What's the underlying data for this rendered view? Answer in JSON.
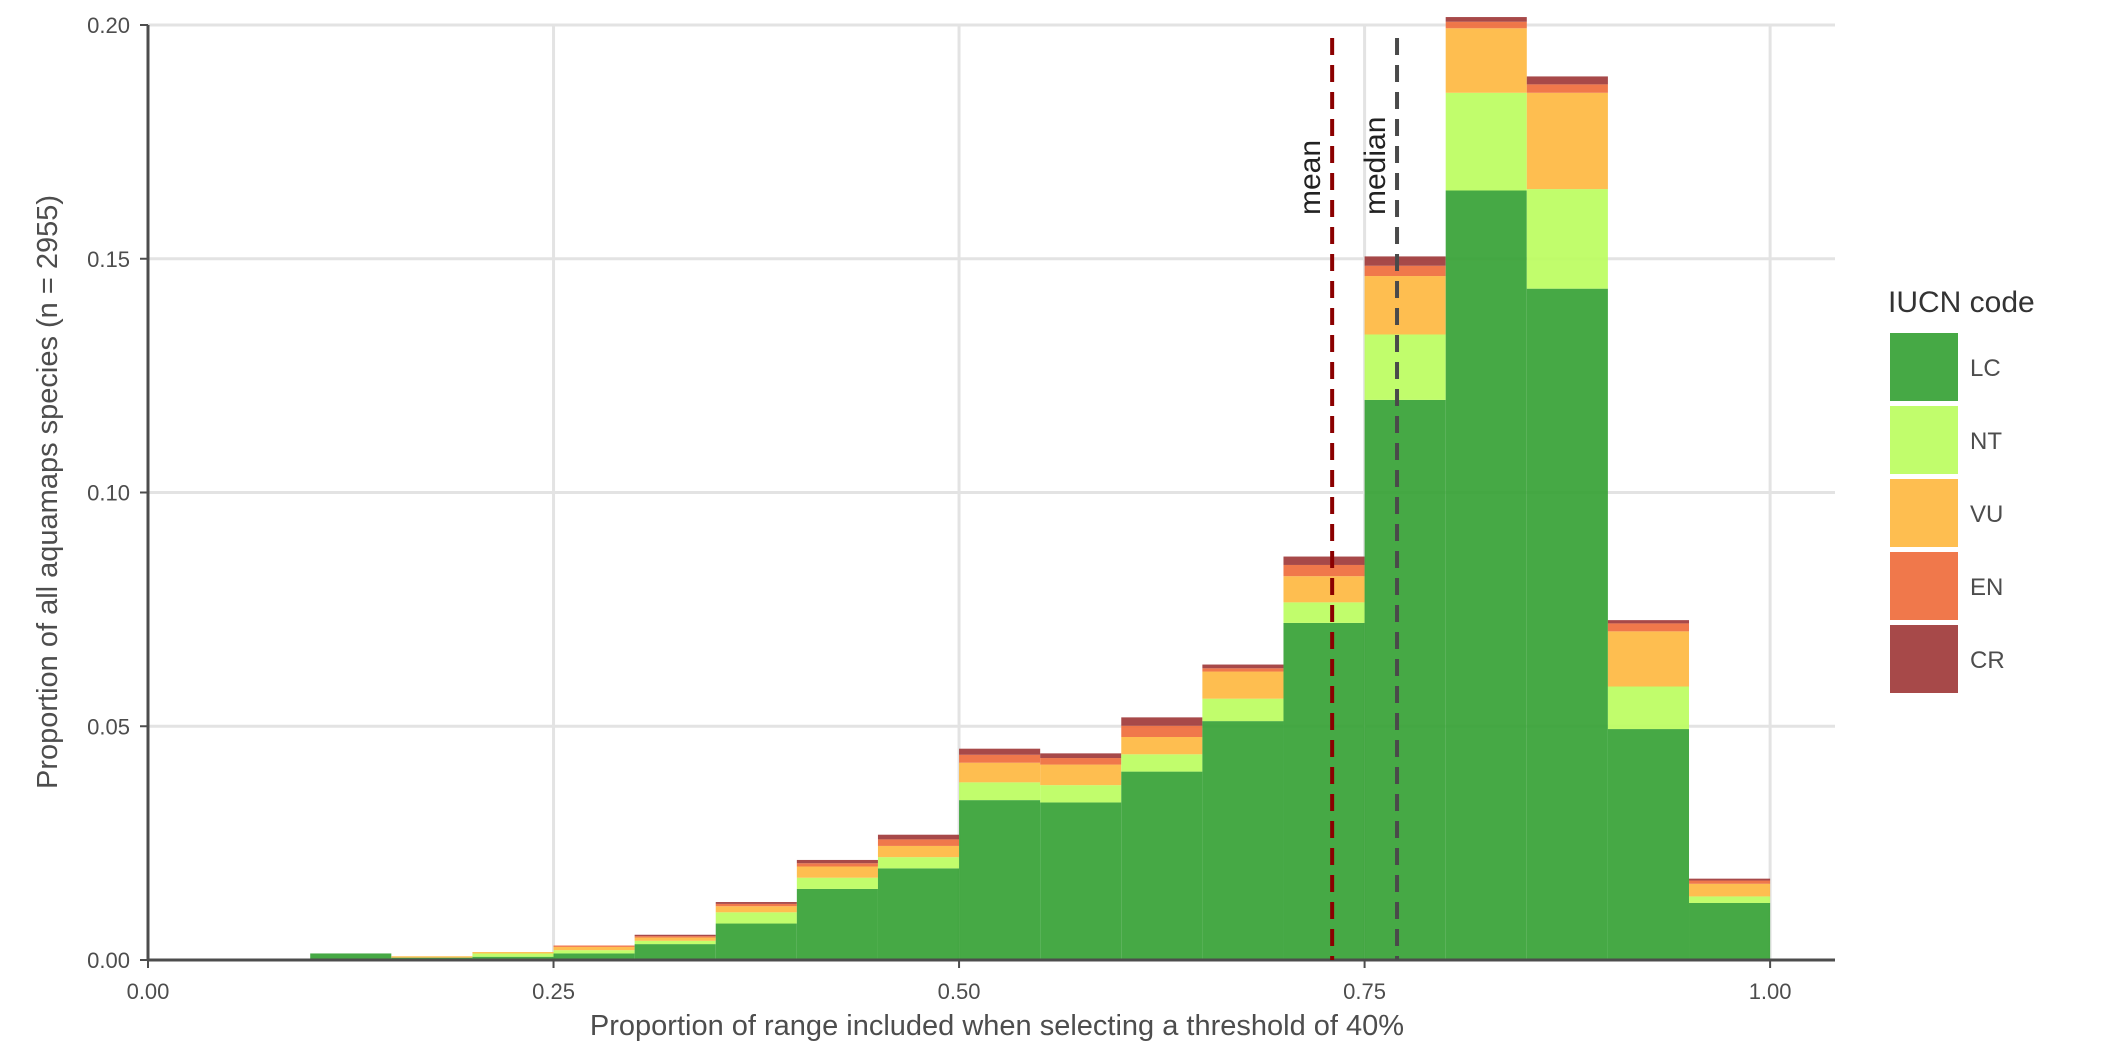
{
  "chart_data": {
    "type": "bar",
    "stacked": true,
    "xlabel": "Proportion of range included when selecting a threshold of 40%",
    "ylabel": "Proportion of all aquamaps species (n = 2955)",
    "xlim": [
      0,
      1.04
    ],
    "ylim": [
      0,
      0.2
    ],
    "x_ticks": [
      0,
      0.25,
      0.5,
      0.75,
      1.0
    ],
    "x_tick_labels": [
      "0.00",
      "0.25",
      "0.50",
      "0.75",
      "1.00"
    ],
    "y_ticks": [
      0,
      0.05,
      0.1,
      0.15,
      0.2
    ],
    "y_tick_labels": [
      "0.00",
      "0.05",
      "0.10",
      "0.15",
      "0.20"
    ],
    "grid": true,
    "bin_width": 0.05,
    "bin_starts": [
      0.0,
      0.05,
      0.1,
      0.15,
      0.2,
      0.25,
      0.3,
      0.35,
      0.4,
      0.45,
      0.5,
      0.55,
      0.6,
      0.65,
      0.7,
      0.75,
      0.8,
      0.85,
      0.9,
      0.95
    ],
    "series": [
      {
        "name": "LC",
        "color": "#36a235",
        "values": [
          0.0003,
          0.0003,
          0.0014,
          0.0005,
          0.0007,
          0.0014,
          0.0034,
          0.0078,
          0.0152,
          0.0196,
          0.0342,
          0.0337,
          0.0403,
          0.0511,
          0.0721,
          0.1198,
          0.1646,
          0.1436,
          0.0494,
          0.0122
        ]
      },
      {
        "name": "NT",
        "color": "#bcfd60",
        "values": [
          0.0,
          0.0,
          0.0,
          0.0,
          0.0007,
          0.0007,
          0.0007,
          0.0024,
          0.0024,
          0.0024,
          0.0038,
          0.0037,
          0.0037,
          0.0048,
          0.0044,
          0.014,
          0.0209,
          0.0213,
          0.0091,
          0.0014
        ]
      },
      {
        "name": "VU",
        "color": "#feb941",
        "values": [
          0.0,
          0.0,
          0.0,
          0.0003,
          0.0003,
          0.0007,
          0.0007,
          0.0013,
          0.0024,
          0.0024,
          0.0042,
          0.0044,
          0.0037,
          0.0058,
          0.0056,
          0.0125,
          0.0138,
          0.0206,
          0.0118,
          0.0027
        ]
      },
      {
        "name": "EN",
        "color": "#ef6d3c",
        "values": [
          0.0,
          0.0,
          0.0,
          0.0,
          0.0,
          0.0003,
          0.0003,
          0.0005,
          0.0007,
          0.0014,
          0.0017,
          0.0014,
          0.0024,
          0.0007,
          0.0024,
          0.0022,
          0.0014,
          0.0018,
          0.0017,
          0.0007
        ]
      },
      {
        "name": "CR",
        "color": "#a03a3a",
        "values": [
          0.0,
          0.0,
          0.0,
          0.0,
          0.0,
          0.0,
          0.0003,
          0.0004,
          0.0007,
          0.001,
          0.0013,
          0.001,
          0.0018,
          0.0008,
          0.0018,
          0.002,
          0.001,
          0.0017,
          0.0007,
          0.0004
        ]
      }
    ],
    "reference_lines": [
      {
        "label": "mean",
        "x": 0.73,
        "color": "#8b0000"
      },
      {
        "label": "median",
        "x": 0.77,
        "color": "#4a4a4a"
      }
    ],
    "legend": {
      "title": "IUCN code",
      "position": "right",
      "items": [
        "LC",
        "NT",
        "VU",
        "EN",
        "CR"
      ]
    }
  }
}
